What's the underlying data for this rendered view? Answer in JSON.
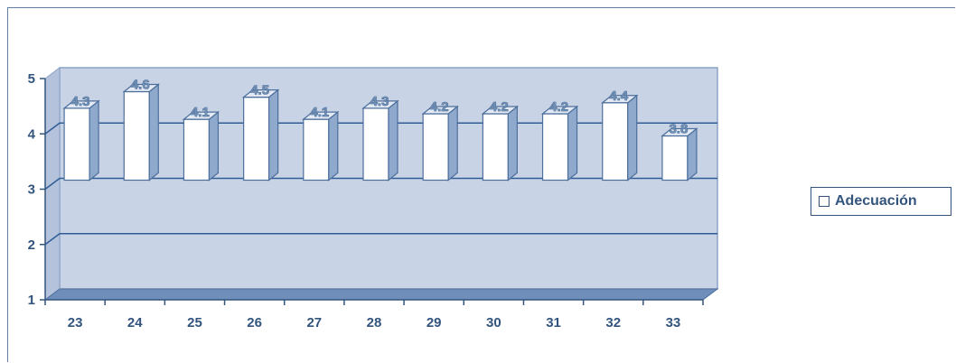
{
  "chart_data": {
    "type": "bar",
    "categories": [
      "23",
      "24",
      "25",
      "26",
      "27",
      "28",
      "29",
      "30",
      "31",
      "32",
      "33"
    ],
    "series": [
      {
        "name": "Adecuación",
        "values": [
          4.3,
          4.6,
          4.1,
          4.5,
          4.1,
          4.3,
          4.2,
          4.2,
          4.2,
          4.4,
          3.8
        ]
      }
    ],
    "ylim": [
      1,
      5
    ],
    "yticks": [
      "1",
      "2",
      "3",
      "4",
      "5"
    ],
    "data_labels": [
      "4.3",
      "4.6",
      "4.1",
      "4.5",
      "4.1",
      "4.3",
      "4.2",
      "4.2",
      "4.2",
      "4.4",
      "3.8"
    ],
    "legend": {
      "position": "right",
      "label": "Adecuación"
    },
    "grid": true,
    "three_d": true,
    "colors": {
      "wall": "#c9d3e6",
      "floor": "#6f8fba",
      "gridline": "#2f5d96",
      "bar_face": "#ffffff",
      "bar_side": "#8fa9cc",
      "text": "#33557d"
    }
  }
}
